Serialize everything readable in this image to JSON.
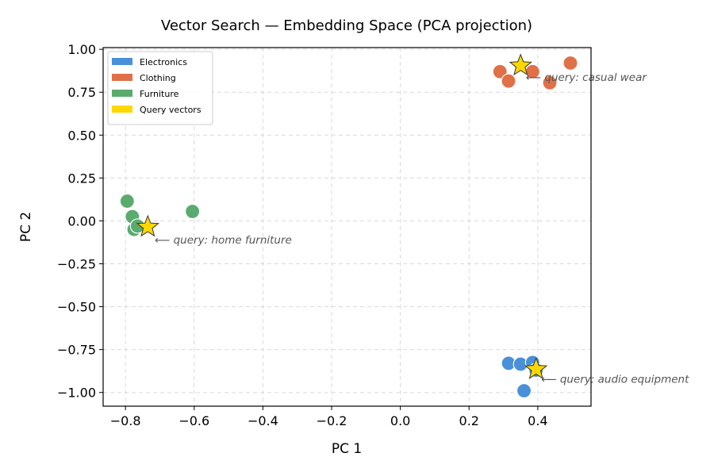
{
  "chart_data": {
    "type": "scatter",
    "title": "Vector Search — Embedding Space (PCA projection)",
    "xlabel": "PC 1",
    "ylabel": "PC 2",
    "xlim": [
      -0.865,
      0.555
    ],
    "ylim": [
      -1.08,
      1.01
    ],
    "xticks": [
      -0.8,
      -0.6,
      -0.4,
      -0.2,
      0.0,
      0.2,
      0.4
    ],
    "xtick_labels": [
      "−0.8",
      "−0.6",
      "−0.4",
      "−0.2",
      "0.0",
      "0.2",
      "0.4"
    ],
    "yticks": [
      1.0,
      0.75,
      0.5,
      0.25,
      0.0,
      -0.25,
      -0.5,
      -0.75,
      -1.0
    ],
    "ytick_labels": [
      "1.00",
      "0.75",
      "0.50",
      "0.25",
      "0.00",
      "−0.25",
      "−0.50",
      "−0.75",
      "−1.00"
    ],
    "grid": true,
    "legend_position": "top-left",
    "series": [
      {
        "name": "Electronics",
        "color": "#4a90d9",
        "marker": "circle",
        "points": [
          [
            0.315,
            -0.83
          ],
          [
            0.35,
            -0.835
          ],
          [
            0.385,
            -0.825
          ],
          [
            0.395,
            -0.87
          ],
          [
            0.36,
            -0.99
          ]
        ]
      },
      {
        "name": "Clothing",
        "color": "#e07048",
        "marker": "circle",
        "points": [
          [
            0.29,
            0.87
          ],
          [
            0.315,
            0.815
          ],
          [
            0.385,
            0.87
          ],
          [
            0.435,
            0.805
          ],
          [
            0.495,
            0.92
          ]
        ]
      },
      {
        "name": "Furniture",
        "color": "#5aab6e",
        "marker": "circle",
        "points": [
          [
            -0.795,
            0.115
          ],
          [
            -0.78,
            0.025
          ],
          [
            -0.775,
            -0.05
          ],
          [
            -0.765,
            -0.03
          ],
          [
            -0.605,
            0.055
          ]
        ]
      },
      {
        "name": "Query vectors",
        "color": "#ffd700",
        "marker": "star",
        "points": [
          [
            0.35,
            0.905
          ],
          [
            -0.735,
            -0.035
          ],
          [
            0.395,
            -0.865
          ]
        ]
      }
    ],
    "annotations": [
      {
        "text": "⟵ query: casual wear",
        "x": 0.365,
        "y": 0.84
      },
      {
        "text": "⟵ query: home furniture",
        "x": -0.715,
        "y": -0.11
      },
      {
        "text": "⟵ query: audio equipment",
        "x": 0.41,
        "y": -0.92
      }
    ]
  }
}
